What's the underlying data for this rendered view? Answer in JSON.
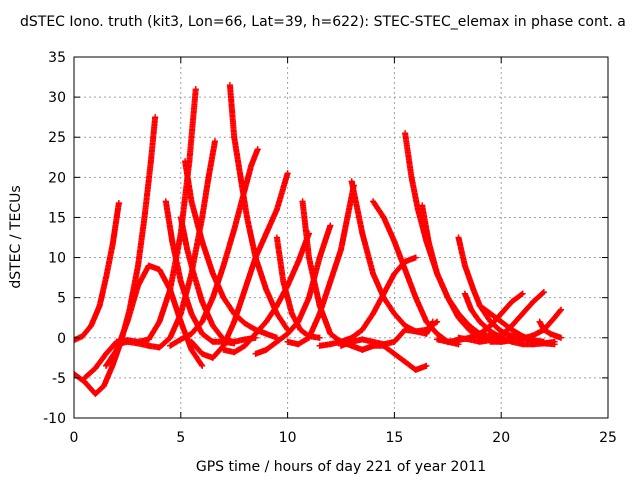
{
  "chart_data": {
    "type": "scatter",
    "title": "dSTEC Iono. truth (kit3, Lon=66, Lat=39, h=622): STEC-STEC_elemax in phase cont. a",
    "xlabel": "GPS time / hours of day 221 of year 2011",
    "ylabel": "dSTEC  / TECUs",
    "xlim": [
      0,
      25
    ],
    "ylim": [
      -10,
      35
    ],
    "x_ticks": [
      0,
      5,
      10,
      15,
      20,
      25
    ],
    "y_ticks": [
      -10,
      -5,
      0,
      5,
      10,
      15,
      20,
      25,
      30,
      35
    ],
    "x_tick_labels": [
      "0",
      "5",
      "10",
      "15",
      "20",
      "25"
    ],
    "y_tick_labels": [
      "-10",
      "-5",
      "0",
      "5",
      "10",
      "15",
      "20",
      "25",
      "30",
      "35"
    ],
    "grid": true,
    "marker": "+",
    "color": "#ff0000",
    "series": [
      {
        "x": [
          0.0,
          0.4,
          0.8,
          1.2,
          1.5,
          1.8,
          2.0,
          2.1
        ],
        "y": [
          -0.3,
          0.2,
          1.5,
          4.0,
          7.5,
          11.5,
          15.0,
          16.8
        ]
      },
      {
        "x": [
          0.0,
          0.5,
          1.0,
          1.4,
          1.8,
          2.2,
          2.6,
          3.0,
          3.3,
          3.6,
          3.8
        ],
        "y": [
          -4.5,
          -5.5,
          -7.0,
          -6.0,
          -3.5,
          -0.5,
          3.5,
          9.0,
          15.0,
          22.0,
          27.5
        ]
      },
      {
        "x": [
          0.5,
          1.0,
          1.5,
          2.0,
          2.5,
          3.0,
          3.5,
          4.0,
          4.5,
          5.0,
          5.4,
          5.7
        ],
        "y": [
          -5.0,
          -3.8,
          -2.0,
          -0.5,
          -0.3,
          -0.5,
          -0.2,
          2.0,
          6.0,
          13.0,
          22.0,
          31.0
        ]
      },
      {
        "x": [
          1.5,
          2.0,
          2.5,
          3.0,
          3.5,
          4.0,
          4.5,
          5.0,
          5.5,
          6.0
        ],
        "y": [
          -3.5,
          -1.5,
          2.0,
          6.5,
          9.0,
          8.5,
          6.0,
          2.0,
          -1.5,
          -3.5
        ]
      },
      {
        "x": [
          2.0,
          2.5,
          3.0,
          3.5,
          4.0,
          4.5,
          5.0,
          5.5,
          6.0,
          6.3,
          6.6
        ],
        "y": [
          -0.8,
          -0.5,
          -0.7,
          -1.0,
          -1.2,
          0.0,
          3.0,
          8.0,
          15.0,
          20.0,
          24.5
        ]
      },
      {
        "x": [
          4.3,
          4.6,
          5.0,
          5.5,
          6.0,
          6.5,
          7.0,
          7.5
        ],
        "y": [
          17.0,
          12.0,
          7.0,
          3.0,
          0.5,
          -0.5,
          -0.5,
          -0.7
        ]
      },
      {
        "x": [
          5.0,
          5.3,
          5.6,
          6.0,
          6.5,
          7.0,
          7.5,
          8.0,
          8.5
        ],
        "y": [
          15.0,
          11.0,
          8.0,
          4.5,
          1.5,
          -0.2,
          -0.5,
          -0.2,
          0.0
        ]
      },
      {
        "x": [
          5.2,
          5.5,
          6.0,
          6.5,
          7.0,
          7.5,
          8.0,
          8.5,
          9.0,
          9.5
        ],
        "y": [
          22.0,
          17.0,
          12.0,
          8.0,
          5.0,
          3.0,
          1.8,
          1.0,
          0.5,
          0.0
        ]
      },
      {
        "x": [
          4.5,
          5.0,
          5.5,
          6.0,
          6.5,
          7.0,
          7.5,
          8.0,
          8.3,
          8.6
        ],
        "y": [
          -1.0,
          -0.2,
          0.5,
          2.0,
          5.0,
          9.0,
          13.5,
          18.5,
          21.5,
          23.5
        ]
      },
      {
        "x": [
          5.5,
          6.0,
          6.5,
          7.0,
          7.5,
          8.0,
          8.5,
          9.0,
          9.5,
          10.0
        ],
        "y": [
          -0.5,
          -2.0,
          -2.5,
          -1.0,
          2.0,
          6.0,
          10.0,
          13.0,
          16.0,
          20.5
        ]
      },
      {
        "x": [
          7.3,
          7.5,
          7.8,
          8.1,
          8.5,
          9.0,
          9.5,
          10.0
        ],
        "y": [
          31.5,
          25.0,
          20.0,
          15.0,
          10.0,
          6.0,
          3.0,
          1.0
        ]
      },
      {
        "x": [
          7.0,
          7.5,
          8.0,
          8.5,
          9.0,
          9.5,
          10.0,
          10.5,
          11.0
        ],
        "y": [
          -1.5,
          -1.8,
          -1.0,
          0.5,
          2.0,
          4.0,
          6.5,
          9.5,
          13.0
        ]
      },
      {
        "x": [
          9.5,
          9.8,
          10.2,
          10.6,
          11.0,
          11.5
        ],
        "y": [
          12.5,
          7.0,
          3.0,
          1.0,
          0.2,
          0.0
        ]
      },
      {
        "x": [
          8.5,
          9.0,
          9.5,
          10.0,
          10.5,
          11.0,
          11.5,
          12.0
        ],
        "y": [
          -2.0,
          -1.5,
          -0.5,
          0.5,
          2.0,
          5.0,
          10.0,
          14.0
        ]
      },
      {
        "x": [
          10.7,
          11.0,
          11.5,
          12.0,
          12.5,
          13.0,
          13.5,
          14.0
        ],
        "y": [
          17.0,
          10.0,
          4.0,
          0.5,
          -0.5,
          -1.0,
          -1.5,
          -1.0
        ]
      },
      {
        "x": [
          10.0,
          10.5,
          11.0,
          11.5,
          12.0,
          12.5,
          12.8,
          13.1
        ],
        "y": [
          -0.5,
          -0.8,
          0.0,
          3.0,
          7.0,
          11.0,
          15.0,
          19.0
        ]
      },
      {
        "x": [
          11.5,
          12.0,
          12.5,
          13.0,
          13.5,
          14.0,
          14.5,
          15.0,
          15.5,
          16.0
        ],
        "y": [
          -1.0,
          -0.8,
          -0.5,
          0.0,
          1.0,
          3.0,
          5.5,
          8.0,
          9.5,
          10.0
        ]
      },
      {
        "x": [
          13.0,
          13.5,
          14.0,
          14.5,
          15.0,
          15.5,
          16.0,
          16.5,
          17.0
        ],
        "y": [
          19.5,
          13.0,
          8.0,
          5.0,
          3.0,
          1.5,
          0.8,
          1.0,
          2.0
        ]
      },
      {
        "x": [
          14.0,
          14.5,
          15.0,
          15.5,
          16.0,
          16.5,
          17.0,
          17.5,
          18.0
        ],
        "y": [
          17.0,
          15.0,
          12.0,
          8.5,
          5.0,
          2.0,
          0.5,
          -0.5,
          -0.8
        ]
      },
      {
        "x": [
          12.5,
          13.0,
          13.5,
          14.0,
          14.5,
          15.0,
          15.5,
          16.0,
          16.5,
          16.8
        ],
        "y": [
          -1.0,
          -0.5,
          -0.2,
          -0.5,
          -0.8,
          -0.5,
          1.0,
          0.8,
          0.5,
          2.0
        ]
      },
      {
        "x": [
          15.5,
          15.8,
          16.1,
          16.5,
          17.0,
          17.5,
          18.0,
          18.5,
          19.0,
          19.5,
          20.0
        ],
        "y": [
          25.5,
          20.0,
          16.0,
          12.0,
          8.0,
          5.0,
          3.0,
          1.5,
          0.5,
          0.2,
          0.3
        ]
      },
      {
        "x": [
          16.3,
          16.6,
          17.0,
          17.5,
          18.0,
          18.5,
          19.0,
          19.5,
          20.0,
          20.5
        ],
        "y": [
          16.5,
          12.0,
          8.0,
          5.0,
          2.5,
          1.0,
          0.0,
          -0.3,
          -0.5,
          -0.3
        ]
      },
      {
        "x": [
          13.5,
          14.0,
          14.5,
          15.0,
          15.5,
          16.0,
          16.5
        ],
        "y": [
          -1.5,
          -1.0,
          -1.0,
          -2.0,
          -3.0,
          -4.0,
          -3.5
        ]
      },
      {
        "x": [
          18.0,
          18.3,
          18.7,
          19.0,
          19.5,
          20.0,
          20.5,
          21.0,
          21.5,
          22.0
        ],
        "y": [
          12.5,
          9.0,
          6.0,
          4.0,
          2.0,
          0.8,
          0.2,
          0.0,
          -0.3,
          -0.5
        ]
      },
      {
        "x": [
          18.3,
          18.6,
          19.0,
          19.5,
          20.0,
          20.5,
          21.0,
          21.5,
          22.0,
          22.5
        ],
        "y": [
          5.5,
          3.5,
          2.0,
          0.8,
          0.0,
          -0.5,
          -0.8,
          -0.8,
          -0.7,
          -0.5
        ]
      },
      {
        "x": [
          19.0,
          19.5,
          20.0,
          20.5,
          21.0,
          21.5,
          22.0,
          22.5
        ],
        "y": [
          4.0,
          3.0,
          2.0,
          1.0,
          0.2,
          -0.3,
          -0.7,
          -0.8
        ]
      },
      {
        "x": [
          17.0,
          17.5,
          18.0,
          18.5,
          19.0,
          19.5,
          20.0,
          20.5,
          21.0
        ],
        "y": [
          -0.2,
          -0.5,
          -0.3,
          0.0,
          0.5,
          1.5,
          3.0,
          4.5,
          5.5
        ]
      },
      {
        "x": [
          18.0,
          18.5,
          19.0,
          19.5,
          20.0,
          20.5,
          21.0,
          21.5,
          22.0
        ],
        "y": [
          0.0,
          -0.2,
          -0.5,
          -0.3,
          0.3,
          1.5,
          3.0,
          4.5,
          5.7
        ]
      },
      {
        "x": [
          19.5,
          20.0,
          20.5,
          21.0,
          21.5,
          22.0,
          22.5,
          22.8
        ],
        "y": [
          -0.5,
          -0.5,
          -0.3,
          -0.1,
          0.3,
          1.0,
          2.5,
          3.5
        ]
      },
      {
        "x": [
          21.8,
          22.0,
          22.3,
          22.6,
          22.8
        ],
        "y": [
          2.0,
          1.0,
          0.5,
          0.2,
          0.0
        ]
      }
    ]
  }
}
